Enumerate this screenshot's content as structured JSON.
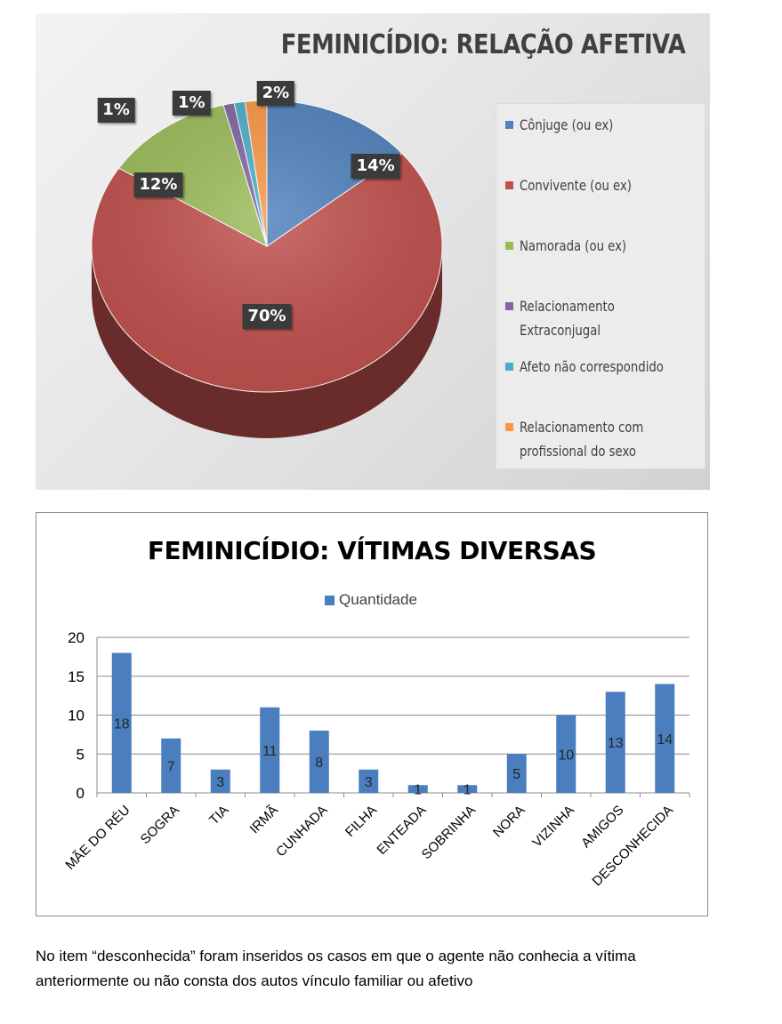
{
  "chart_data": [
    {
      "type": "pie",
      "title": "FEMINICÍDIO: RELAÇÃO AFETIVA",
      "slices": [
        {
          "name": "Cônjuge (ou ex)",
          "value": 14,
          "label": "14%",
          "color": "#4f81bd"
        },
        {
          "name": "Convivente (ou ex)",
          "value": 70,
          "label": "70%",
          "color": "#c0504d"
        },
        {
          "name": "Namorada (ou ex)",
          "value": 12,
          "label": "12%",
          "color": "#9bbb59"
        },
        {
          "name": "Relacionamento Extraconjugal",
          "value": 1,
          "label": "1%",
          "color": "#8064a2"
        },
        {
          "name": "Afeto não correspondido",
          "value": 1,
          "label": "1%",
          "color": "#4bacc6"
        },
        {
          "name": "Relacionamento com profissional do sexo",
          "value": 2,
          "label": "2%",
          "color": "#f79646"
        }
      ],
      "legend_position": "right"
    },
    {
      "type": "bar",
      "title": "FEMINICÍDIO: VÍTIMAS DIVERSAS",
      "categories": [
        "MÃE DO RÉU",
        "SOGRA",
        "TIA",
        "IRMÃ",
        "CUNHADA",
        "FILHA",
        "ENTEADA",
        "SOBRINHA",
        "NORA",
        "VIZINHA",
        "AMIGOS",
        "DESCONHECIDA"
      ],
      "series": [
        {
          "name": "Quantidade",
          "values": [
            18,
            7,
            3,
            11,
            8,
            3,
            1,
            1,
            5,
            10,
            13,
            14
          ],
          "color": "#4a7ebf"
        }
      ],
      "ylim": [
        0,
        20
      ],
      "yticks": [
        0,
        5,
        10,
        15,
        20
      ],
      "grid": true,
      "legend_position": "top"
    }
  ],
  "footnote": "No item “desconhecida” foram inseridos os casos em que o agente não conhecia a vítima anteriormente ou não consta dos autos vínculo familiar ou afetivo"
}
